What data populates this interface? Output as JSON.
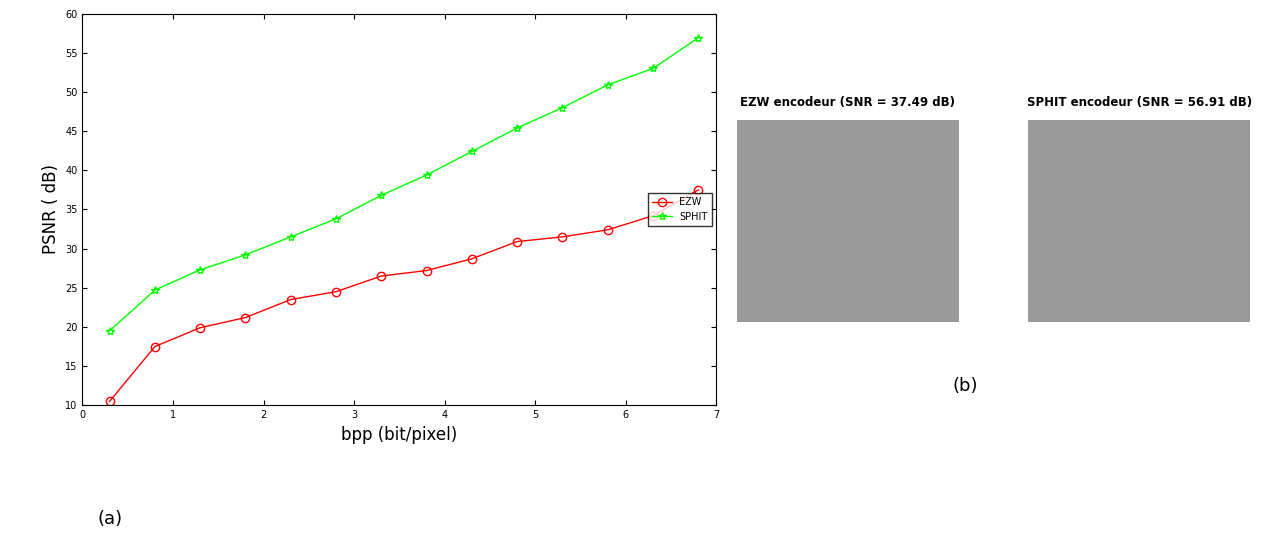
{
  "chart_data": {
    "type": "line",
    "x": [
      0.3,
      0.8,
      1.3,
      1.8,
      2.3,
      2.8,
      3.3,
      3.8,
      4.3,
      4.8,
      5.3,
      5.8,
      6.3,
      6.8
    ],
    "series": [
      {
        "name": "EZW",
        "color": "#ff0000",
        "marker": "o",
        "line_style": "solid",
        "values": [
          10.5,
          17.5,
          19.9,
          21.2,
          23.5,
          24.5,
          26.5,
          27.2,
          28.7,
          30.9,
          31.5,
          32.4,
          34.2,
          37.49
        ]
      },
      {
        "name": "SPHIT",
        "color": "#00ff00",
        "marker": "*",
        "line_style": "solid",
        "values": [
          19.5,
          24.7,
          27.3,
          29.2,
          31.5,
          33.8,
          36.8,
          39.4,
          42.4,
          45.4,
          48.0,
          50.9,
          53.0,
          56.91
        ]
      }
    ],
    "x_label": "bpp (bit/pixel)",
    "y_label": "PSNR ( dB)",
    "xlim": [
      0,
      7
    ],
    "xticks": [
      0,
      1,
      2,
      3,
      4,
      5,
      6,
      7
    ],
    "ylim": [
      10,
      60
    ],
    "yticks": [
      10,
      15,
      20,
      25,
      30,
      35,
      40,
      45,
      50,
      55,
      60
    ],
    "grid": false,
    "legend": "center right"
  },
  "figure": {
    "panel_labels": [
      "(a)",
      "(b)"
    ],
    "images": [
      {
        "title": "EZW encodeur (SNR = 37.49 dB)"
      },
      {
        "title": "SPHIT encodeur (SNR = 56.91 dB)"
      }
    ]
  }
}
